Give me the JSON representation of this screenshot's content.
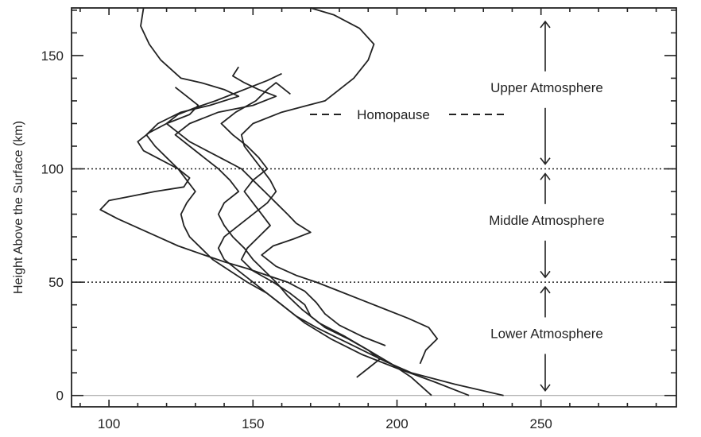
{
  "chart_data": {
    "type": "line",
    "title": "",
    "xlabel": "",
    "ylabel": "Height Above the Surface (km)",
    "xlim": [
      87,
      297
    ],
    "ylim": [
      -5,
      171
    ],
    "xticks": [
      100,
      150,
      200,
      250
    ],
    "yticks": [
      0,
      50,
      100,
      150
    ],
    "grid": false,
    "legend": {
      "label": "Homopause",
      "position": "top-right",
      "style": "dashed"
    },
    "boundaries": [
      {
        "y": 100,
        "style": "dotted"
      },
      {
        "y": 50,
        "style": "dotted"
      }
    ],
    "regions": [
      {
        "label": "Upper Atmosphere",
        "y_from": 100,
        "y_to": 165
      },
      {
        "label": "Middle Atmosphere",
        "y_from": 50,
        "y_to": 100
      },
      {
        "label": "Lower Atmosphere",
        "y_from": 0,
        "y_to": 50
      }
    ],
    "series": [
      {
        "points": [
          [
            225,
            0
          ],
          [
            213,
            6
          ],
          [
            200,
            12
          ],
          [
            188,
            18
          ],
          [
            177,
            25
          ],
          [
            168,
            32
          ],
          [
            162,
            38
          ],
          [
            155,
            45
          ],
          [
            150,
            50
          ],
          [
            145,
            55
          ],
          [
            140,
            60
          ],
          [
            138,
            65
          ],
          [
            140,
            70
          ],
          [
            145,
            75
          ],
          [
            150,
            80
          ],
          [
            155,
            85
          ],
          [
            158,
            90
          ],
          [
            156,
            95
          ],
          [
            153,
            100
          ],
          [
            150,
            105
          ],
          [
            147,
            110
          ],
          [
            146,
            115
          ],
          [
            150,
            120
          ],
          [
            160,
            125
          ],
          [
            175,
            130
          ],
          [
            185,
            140
          ],
          [
            190,
            148
          ],
          [
            192,
            155
          ],
          [
            187,
            162
          ],
          [
            178,
            168
          ],
          [
            170,
            171
          ]
        ]
      },
      {
        "points": [
          [
            237,
            0
          ],
          [
            220,
            5
          ],
          [
            205,
            10
          ],
          [
            196,
            15
          ],
          [
            188,
            20
          ],
          [
            180,
            25
          ],
          [
            172,
            30
          ],
          [
            165,
            35
          ],
          [
            160,
            40
          ],
          [
            155,
            45
          ],
          [
            148,
            50
          ],
          [
            142,
            55
          ],
          [
            136,
            60
          ],
          [
            132,
            65
          ],
          [
            128,
            70
          ],
          [
            126,
            75
          ],
          [
            125,
            80
          ],
          [
            127,
            85
          ],
          [
            130,
            90
          ],
          [
            127,
            95
          ],
          [
            124,
            100
          ],
          [
            120,
            105
          ],
          [
            116,
            110
          ],
          [
            113,
            115
          ],
          [
            117,
            120
          ],
          [
            125,
            125
          ],
          [
            135,
            128
          ],
          [
            145,
            132
          ],
          [
            140,
            135
          ],
          [
            132,
            138
          ],
          [
            125,
            140
          ],
          [
            118,
            148
          ],
          [
            114,
            155
          ],
          [
            111,
            163
          ],
          [
            112,
            171
          ]
        ]
      },
      {
        "points": [
          [
            212,
            0
          ],
          [
            205,
            8
          ],
          [
            198,
            14
          ],
          [
            190,
            20
          ],
          [
            182,
            26
          ],
          [
            173,
            32
          ],
          [
            167,
            38
          ],
          [
            162,
            44
          ],
          [
            158,
            50
          ],
          [
            154,
            55
          ],
          [
            150,
            60
          ],
          [
            147,
            65
          ],
          [
            143,
            70
          ],
          [
            140,
            75
          ],
          [
            138,
            80
          ],
          [
            140,
            85
          ],
          [
            145,
            90
          ],
          [
            142,
            95
          ],
          [
            138,
            100
          ],
          [
            133,
            105
          ],
          [
            128,
            110
          ],
          [
            123,
            115
          ],
          [
            128,
            120
          ],
          [
            138,
            125
          ],
          [
            150,
            128
          ],
          [
            158,
            132
          ],
          [
            152,
            135
          ],
          [
            147,
            138
          ],
          [
            143,
            141
          ],
          [
            145,
            145
          ]
        ]
      },
      {
        "points": [
          [
            186,
            8
          ],
          [
            190,
            12
          ],
          [
            194,
            16
          ],
          [
            190,
            20
          ],
          [
            183,
            25
          ],
          [
            175,
            30
          ],
          [
            170,
            35
          ],
          [
            168,
            40
          ],
          [
            163,
            45
          ],
          [
            157,
            50
          ],
          [
            150,
            55
          ],
          [
            146,
            60
          ],
          [
            148,
            65
          ],
          [
            152,
            70
          ],
          [
            156,
            75
          ],
          [
            153,
            80
          ],
          [
            150,
            85
          ],
          [
            147,
            90
          ],
          [
            150,
            95
          ],
          [
            155,
            100
          ],
          [
            152,
            105
          ],
          [
            148,
            110
          ],
          [
            143,
            115
          ],
          [
            139,
            120
          ],
          [
            144,
            125
          ],
          [
            151,
            130
          ],
          [
            155,
            135
          ],
          [
            158,
            138
          ],
          [
            163,
            133
          ]
        ]
      },
      {
        "points": [
          [
            208,
            14
          ],
          [
            210,
            20
          ],
          [
            214,
            25
          ],
          [
            211,
            30
          ],
          [
            204,
            34
          ],
          [
            196,
            38
          ],
          [
            188,
            42
          ],
          [
            180,
            46
          ],
          [
            172,
            50
          ],
          [
            165,
            53
          ],
          [
            158,
            57
          ],
          [
            153,
            62
          ],
          [
            157,
            66
          ],
          [
            164,
            69
          ],
          [
            170,
            72
          ],
          [
            165,
            76
          ],
          [
            162,
            80
          ],
          [
            158,
            85
          ],
          [
            154,
            90
          ],
          [
            150,
            95
          ],
          [
            146,
            100
          ],
          [
            140,
            104
          ],
          [
            134,
            108
          ],
          [
            128,
            112
          ],
          [
            124,
            116
          ],
          [
            120,
            120
          ],
          [
            124,
            124
          ],
          [
            130,
            127
          ],
          [
            137,
            130
          ],
          [
            143,
            133
          ],
          [
            149,
            136
          ],
          [
            155,
            139
          ],
          [
            160,
            142
          ]
        ]
      },
      {
        "points": [
          [
            196,
            22
          ],
          [
            188,
            26
          ],
          [
            180,
            31
          ],
          [
            175,
            36
          ],
          [
            172,
            41
          ],
          [
            168,
            46
          ],
          [
            162,
            50
          ],
          [
            155,
            53
          ],
          [
            148,
            56
          ],
          [
            140,
            59
          ],
          [
            133,
            62
          ],
          [
            124,
            66
          ],
          [
            117,
            70
          ],
          [
            110,
            74
          ],
          [
            103,
            78
          ],
          [
            97,
            82
          ],
          [
            100,
            86
          ],
          [
            108,
            88
          ],
          [
            116,
            90
          ],
          [
            126,
            92
          ],
          [
            128,
            96
          ],
          [
            124,
            100
          ],
          [
            118,
            104
          ],
          [
            112,
            108
          ],
          [
            110,
            112
          ],
          [
            114,
            116
          ],
          [
            120,
            120
          ],
          [
            128,
            124
          ],
          [
            131,
            128
          ],
          [
            127,
            132
          ],
          [
            123,
            136
          ]
        ]
      }
    ]
  }
}
